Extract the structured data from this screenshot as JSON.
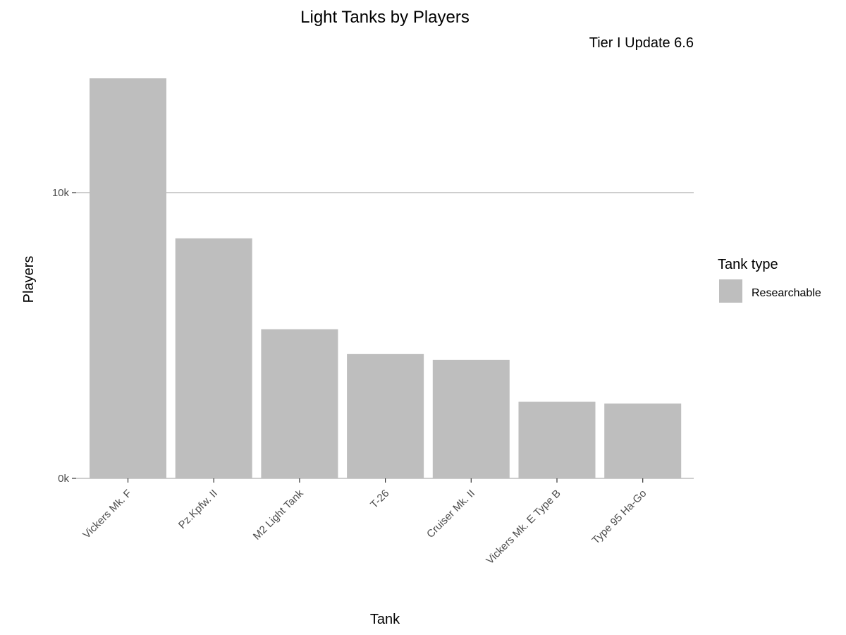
{
  "chart_data": {
    "type": "bar",
    "title": "Light Tanks by Players",
    "subtitle": "Tier I Update 6.6",
    "xlabel": "Tank",
    "ylabel": "Players",
    "categories": [
      "Vickers Mk. F",
      "Pz.Kpfw. II",
      "M2 Light Tank",
      "T-26",
      "Cruiser Mk. II",
      "Vickers Mk. E Type B",
      "Type 95 Ha-Go"
    ],
    "series": [
      {
        "name": "Researchable",
        "values": [
          14000,
          8400,
          5220,
          4350,
          4150,
          2680,
          2620
        ]
      }
    ],
    "ylim": [
      0,
      14000
    ],
    "yticks": [
      0,
      10000
    ],
    "ytick_labels": [
      "0k",
      "10k"
    ],
    "grid": "horizontal major",
    "legend": {
      "title": "Tank type",
      "placement": "right"
    },
    "colors": {
      "bar": "#bebebe",
      "grid": "#bebebe",
      "axis": "#bebebe"
    }
  }
}
